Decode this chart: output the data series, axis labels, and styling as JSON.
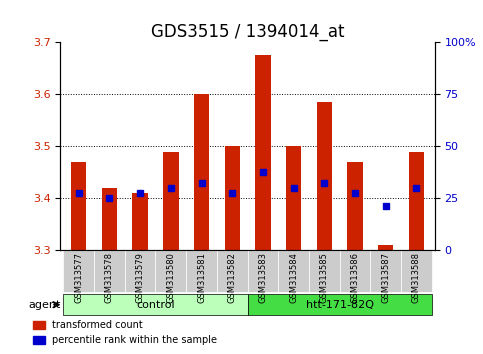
{
  "title": "GDS3515 / 1394014_at",
  "samples": [
    "GSM313577",
    "GSM313578",
    "GSM313579",
    "GSM313580",
    "GSM313581",
    "GSM313582",
    "GSM313583",
    "GSM313584",
    "GSM313585",
    "GSM313586",
    "GSM313587",
    "GSM313588"
  ],
  "bar_tops": [
    3.47,
    3.42,
    3.41,
    3.49,
    3.6,
    3.5,
    3.675,
    3.5,
    3.585,
    3.47,
    3.31,
    3.49
  ],
  "bar_bottoms": [
    3.3,
    3.3,
    3.3,
    3.3,
    3.3,
    3.3,
    3.3,
    3.3,
    3.3,
    3.3,
    3.3,
    3.3
  ],
  "percentile_vals": [
    3.41,
    3.4,
    3.41,
    3.42,
    3.43,
    3.41,
    3.45,
    3.42,
    3.43,
    3.41,
    3.385,
    3.42
  ],
  "ylim": [
    3.3,
    3.7
  ],
  "yticks_left": [
    3.3,
    3.4,
    3.5,
    3.6,
    3.7
  ],
  "yticks_right_vals": [
    0,
    25,
    50,
    75,
    100
  ],
  "yticks_right_pos": [
    3.3,
    3.4,
    3.5,
    3.6,
    3.7
  ],
  "bar_color": "#cc2200",
  "percentile_color": "#0000cc",
  "grid_color": "#000000",
  "groups": [
    {
      "label": "control",
      "start": 0,
      "end": 6,
      "color": "#bbffbb"
    },
    {
      "label": "htt-171-82Q",
      "start": 6,
      "end": 12,
      "color": "#44dd44"
    }
  ],
  "agent_label": "agent",
  "legend_items": [
    {
      "label": "transformed count",
      "color": "#cc2200"
    },
    {
      "label": "percentile rank within the sample",
      "color": "#0000cc"
    }
  ],
  "bar_width": 0.5,
  "tick_label_fontsize": 7,
  "title_fontsize": 12,
  "axis_label_fontsize": 8
}
